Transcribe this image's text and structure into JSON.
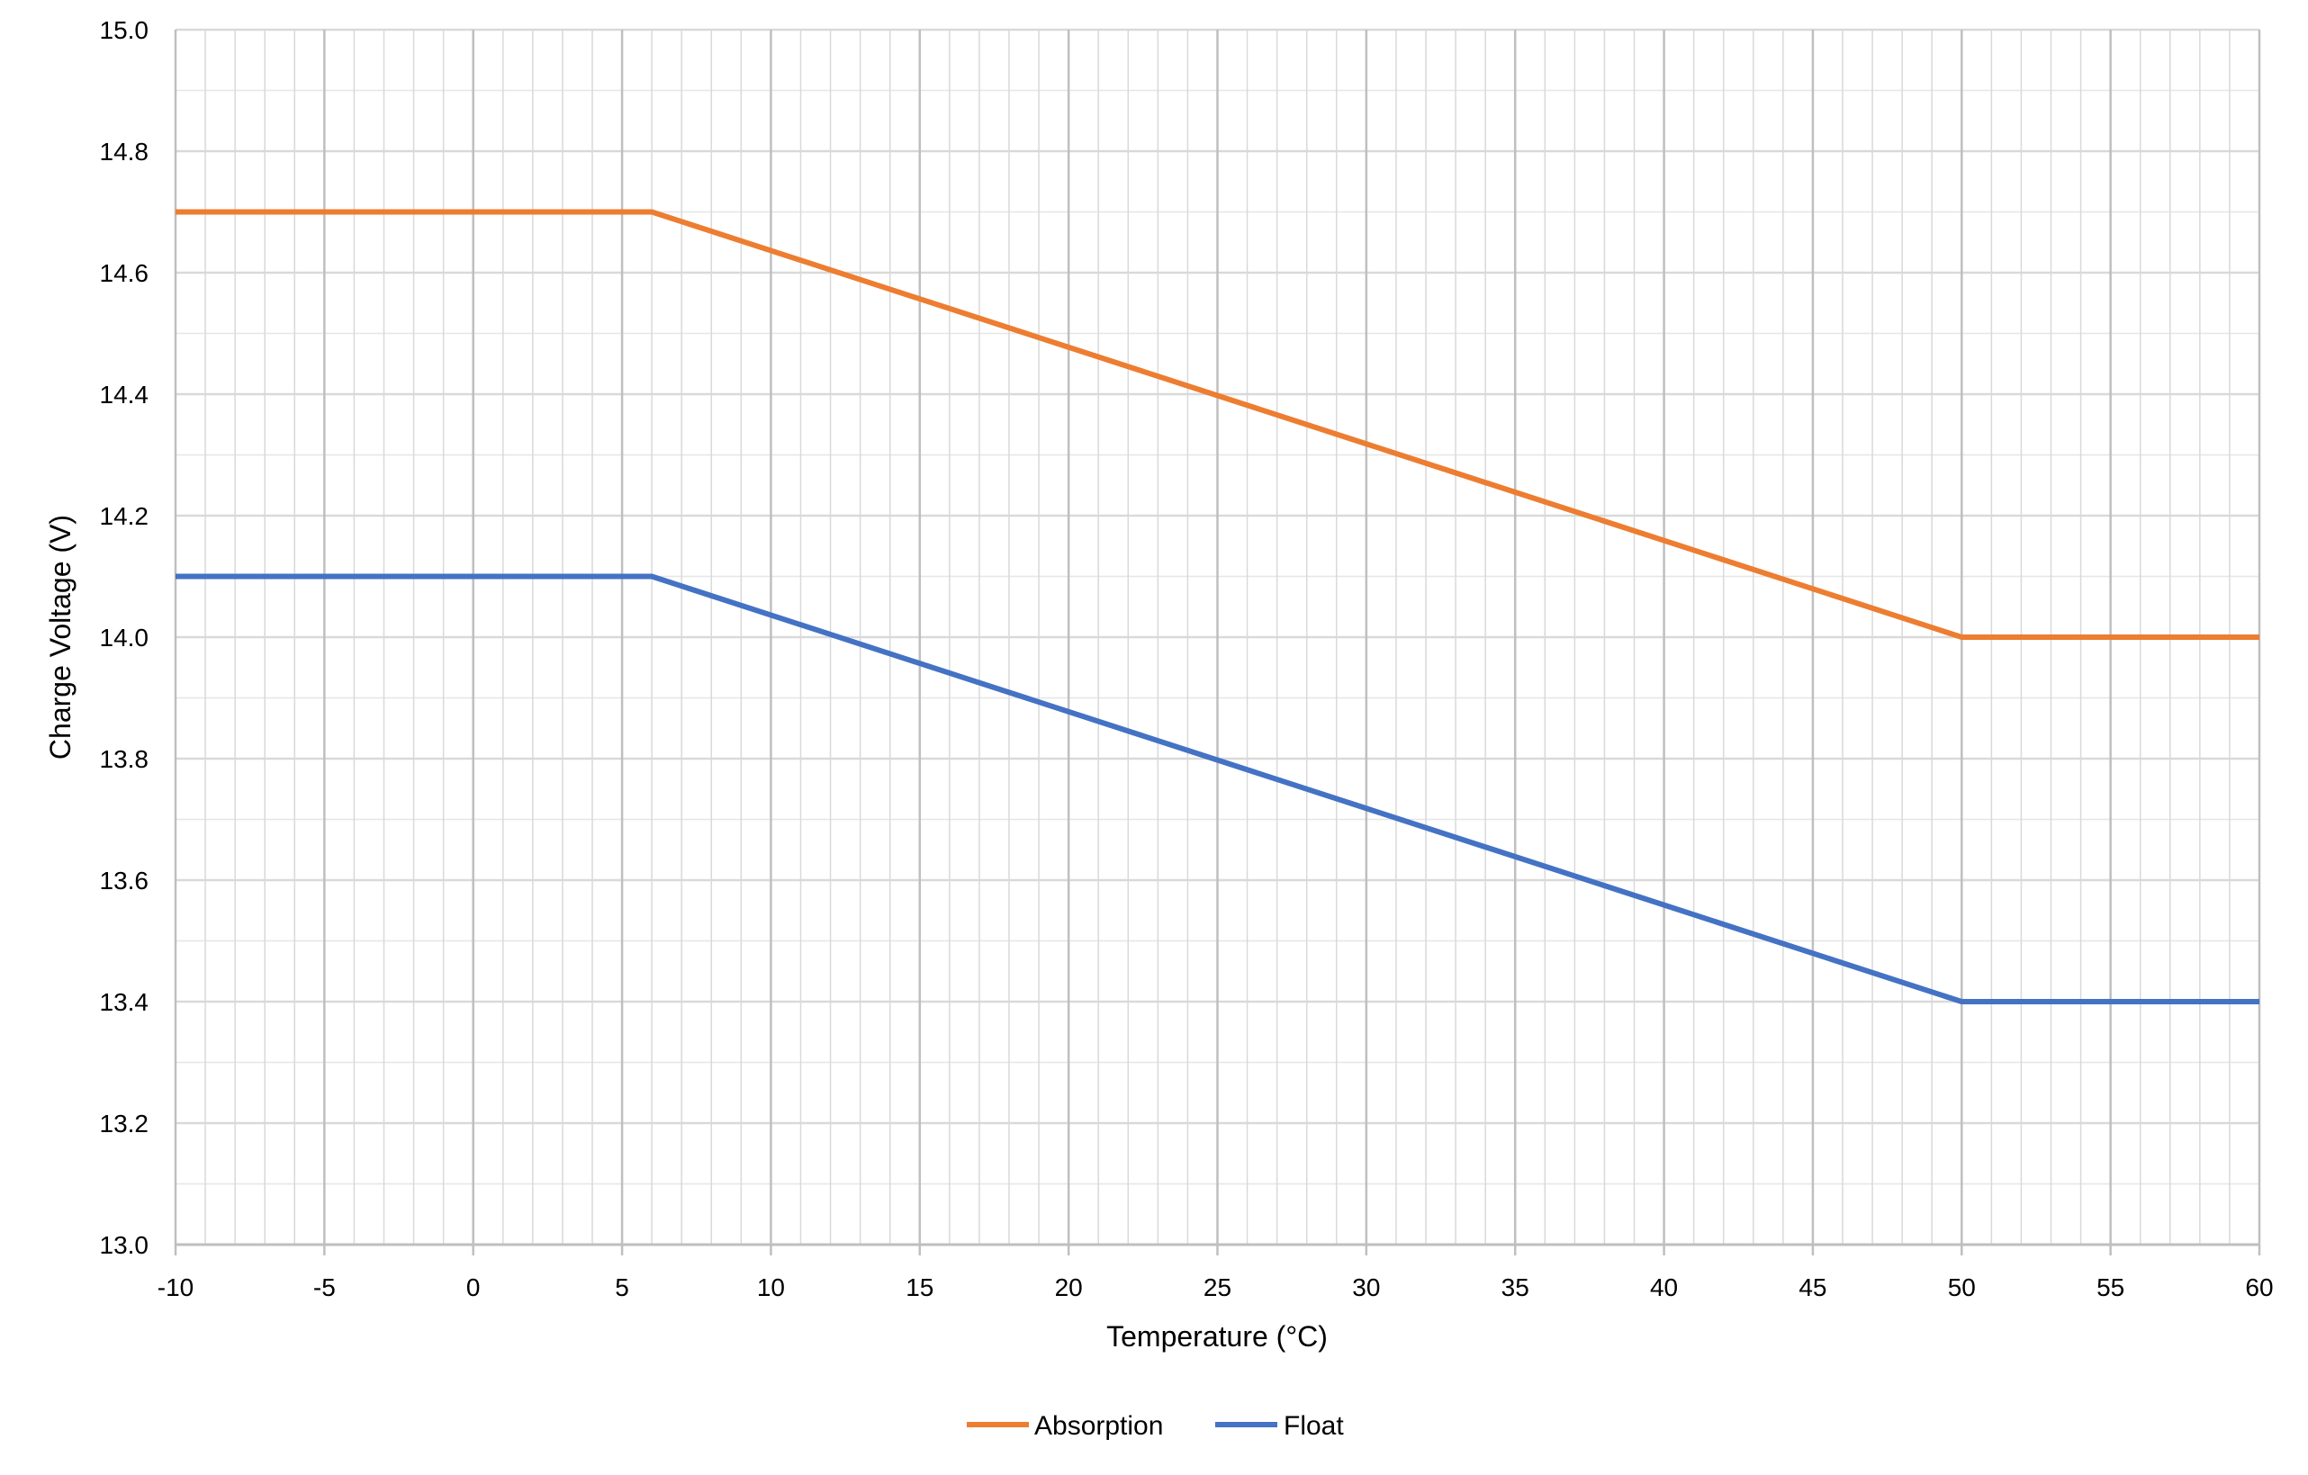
{
  "chart_data": {
    "type": "line",
    "title": "",
    "xlabel": "Temperature (°C)",
    "ylabel": "Charge Voltage (V)",
    "xlim": [
      -10,
      60
    ],
    "ylim": [
      13.0,
      15.0
    ],
    "x_major_step": 5,
    "x_minor_step": 1,
    "y_major_step": 0.2,
    "y_minor_step": 0.1,
    "x_ticks": [
      "-10",
      "-5",
      "0",
      "5",
      "10",
      "15",
      "20",
      "25",
      "30",
      "35",
      "40",
      "45",
      "50",
      "55",
      "60"
    ],
    "y_ticks": [
      "13.0",
      "13.2",
      "13.4",
      "13.6",
      "13.8",
      "14.0",
      "14.2",
      "14.4",
      "14.6",
      "14.8",
      "15.0"
    ],
    "grid": true,
    "legend_position": "bottom",
    "series": [
      {
        "name": "Absorption",
        "color": "#ED7D31",
        "x": [
          -10,
          6,
          50,
          60
        ],
        "y": [
          14.7,
          14.7,
          14.0,
          14.0
        ]
      },
      {
        "name": "Float",
        "color": "#4472C4",
        "x": [
          -10,
          6,
          50,
          60
        ],
        "y": [
          14.1,
          14.1,
          13.4,
          13.4
        ]
      }
    ]
  }
}
